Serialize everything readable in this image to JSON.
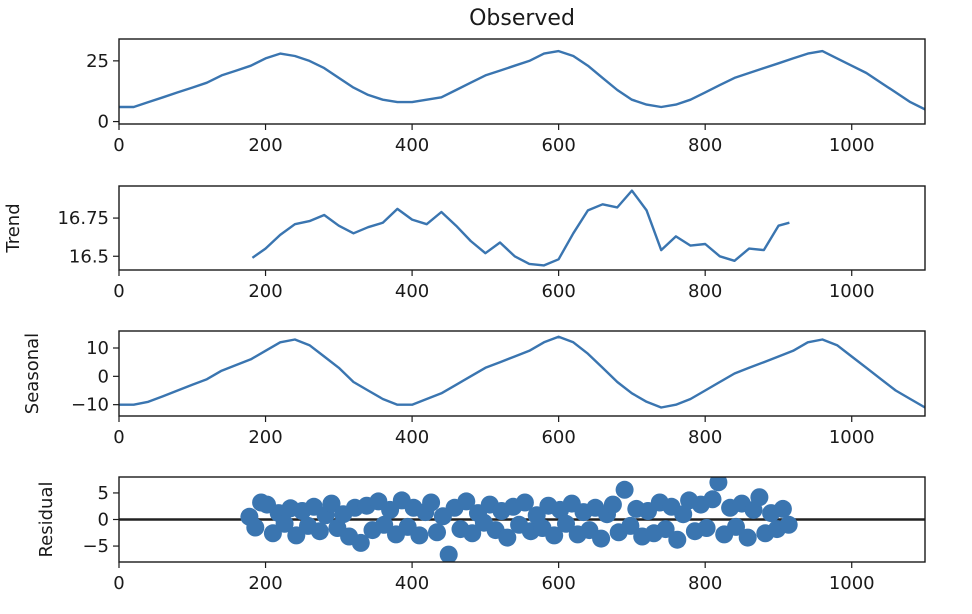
{
  "colors": {
    "series": "#3a75b0",
    "baseline": "#222222",
    "axes": "#1a1a1a"
  },
  "chart_data": [
    {
      "type": "line",
      "title": "Observed",
      "ylabel": "",
      "xlim": [
        0,
        1100
      ],
      "ylim": [
        -1,
        34
      ],
      "xticks": [
        0,
        200,
        400,
        600,
        800,
        1000
      ],
      "yticks": [
        0,
        25
      ],
      "series": [
        {
          "x": [
            0,
            20,
            40,
            60,
            80,
            100,
            120,
            140,
            160,
            180,
            200,
            220,
            240,
            260,
            280,
            300,
            320,
            340,
            360,
            380,
            400,
            420,
            440,
            460,
            480,
            500,
            520,
            540,
            560,
            580,
            600,
            620,
            640,
            660,
            680,
            700,
            720,
            740,
            760,
            780,
            800,
            820,
            840,
            860,
            880,
            900,
            920,
            940,
            960,
            980,
            1000,
            1020,
            1040,
            1060,
            1080,
            1100
          ],
          "y": [
            6,
            6,
            8,
            10,
            12,
            14,
            16,
            19,
            21,
            23,
            26,
            28,
            27,
            25,
            22,
            18,
            14,
            11,
            9,
            8,
            8,
            9,
            10,
            13,
            16,
            19,
            21,
            23,
            25,
            28,
            29,
            27,
            23,
            18,
            13,
            9,
            7,
            6,
            7,
            9,
            12,
            15,
            18,
            20,
            22,
            24,
            26,
            28,
            29,
            26,
            23,
            20,
            16,
            12,
            8,
            5
          ]
        }
      ]
    },
    {
      "type": "line",
      "title": "",
      "ylabel": "Trend",
      "xlim": [
        0,
        1100
      ],
      "ylim": [
        16.41,
        16.96
      ],
      "xticks": [
        0,
        200,
        400,
        600,
        800,
        1000
      ],
      "yticks": [
        16.5,
        16.75
      ],
      "series": [
        {
          "x": [
            182,
            200,
            220,
            240,
            260,
            280,
            300,
            320,
            340,
            360,
            380,
            400,
            420,
            440,
            460,
            480,
            500,
            520,
            540,
            560,
            580,
            600,
            620,
            640,
            660,
            680,
            700,
            720,
            740,
            760,
            780,
            800,
            820,
            840,
            860,
            880,
            900,
            915
          ],
          "y": [
            16.49,
            16.55,
            16.64,
            16.71,
            16.73,
            16.77,
            16.7,
            16.65,
            16.69,
            16.72,
            16.81,
            16.74,
            16.71,
            16.79,
            16.7,
            16.6,
            16.52,
            16.59,
            16.5,
            16.45,
            16.44,
            16.48,
            16.65,
            16.8,
            16.84,
            16.82,
            16.93,
            16.8,
            16.54,
            16.63,
            16.57,
            16.58,
            16.5,
            16.47,
            16.55,
            16.54,
            16.7,
            16.72
          ]
        }
      ]
    },
    {
      "type": "line",
      "title": "",
      "ylabel": "Seasonal",
      "xlim": [
        0,
        1100
      ],
      "ylim": [
        -14,
        16
      ],
      "xticks": [
        0,
        200,
        400,
        600,
        800,
        1000
      ],
      "yticks": [
        -10,
        0,
        10
      ],
      "series": [
        {
          "x": [
            0,
            20,
            40,
            60,
            80,
            100,
            120,
            140,
            160,
            180,
            200,
            220,
            240,
            260,
            280,
            300,
            320,
            340,
            360,
            380,
            400,
            420,
            440,
            460,
            480,
            500,
            520,
            540,
            560,
            580,
            600,
            620,
            640,
            660,
            680,
            700,
            720,
            740,
            760,
            780,
            800,
            820,
            840,
            860,
            880,
            900,
            920,
            940,
            960,
            980,
            1000,
            1020,
            1040,
            1060,
            1080,
            1100
          ],
          "y": [
            -10,
            -10,
            -9,
            -7,
            -5,
            -3,
            -1,
            2,
            4,
            6,
            9,
            12,
            13,
            11,
            7,
            3,
            -2,
            -5,
            -8,
            -10,
            -10,
            -8,
            -6,
            -3,
            0,
            3,
            5,
            7,
            9,
            12,
            14,
            12,
            8,
            3,
            -2,
            -6,
            -9,
            -11,
            -10,
            -8,
            -5,
            -2,
            1,
            3,
            5,
            7,
            9,
            12,
            13,
            11,
            7,
            3,
            -1,
            -5,
            -8,
            -11
          ]
        }
      ]
    },
    {
      "type": "scatter",
      "title": "",
      "ylabel": "Residual",
      "xlim": [
        0,
        1100
      ],
      "ylim": [
        -8,
        8
      ],
      "xticks": [
        0,
        200,
        400,
        600,
        800,
        1000
      ],
      "yticks": [
        -5,
        0,
        5
      ],
      "baseline": 0,
      "series": [
        {
          "x": [
            178,
            186,
            194,
            202,
            210,
            218,
            226,
            234,
            242,
            250,
            258,
            266,
            274,
            282,
            290,
            298,
            306,
            314,
            322,
            330,
            338,
            346,
            354,
            362,
            370,
            378,
            386,
            394,
            402,
            410,
            418,
            426,
            434,
            442,
            450,
            458,
            466,
            474,
            482,
            490,
            498,
            506,
            514,
            522,
            530,
            538,
            546,
            554,
            562,
            570,
            578,
            586,
            594,
            602,
            610,
            618,
            626,
            634,
            642,
            650,
            658,
            666,
            674,
            682,
            690,
            698,
            706,
            714,
            722,
            730,
            738,
            746,
            754,
            762,
            770,
            778,
            786,
            794,
            802,
            810,
            818,
            826,
            834,
            842,
            850,
            858,
            866,
            874,
            882,
            890,
            898,
            906,
            914
          ],
          "y": [
            0.5,
            -1.5,
            3.2,
            2.8,
            -2.6,
            1.2,
            -0.8,
            2.1,
            -3.0,
            1.6,
            -1.2,
            2.4,
            -2.2,
            0.8,
            3.0,
            -1.6,
            1.0,
            -3.2,
            2.2,
            -4.4,
            2.6,
            -2.0,
            3.4,
            -1.0,
            1.8,
            -2.8,
            3.6,
            -1.4,
            2.2,
            -3.0,
            1.4,
            3.2,
            -2.4,
            0.6,
            -6.6,
            2.2,
            -1.8,
            3.4,
            -2.6,
            1.2,
            -0.6,
            2.8,
            -2.0,
            1.6,
            -3.4,
            2.4,
            -1.0,
            3.2,
            -2.2,
            0.8,
            -1.6,
            2.6,
            -3.0,
            1.8,
            -0.8,
            3.0,
            -2.8,
            1.4,
            -2.0,
            2.2,
            -3.6,
            1.0,
            2.8,
            -2.4,
            5.6,
            -1.2,
            2.0,
            -3.2,
            1.6,
            -2.6,
            3.2,
            -1.8,
            2.4,
            -3.8,
            1.0,
            3.6,
            -2.2,
            2.8,
            -1.6,
            3.8,
            7.0,
            -2.8,
            2.2,
            -1.4,
            3.0,
            -3.4,
            1.8,
            4.2,
            -2.6,
            1.2,
            -1.8,
            2.0,
            -1.0
          ]
        }
      ]
    }
  ]
}
